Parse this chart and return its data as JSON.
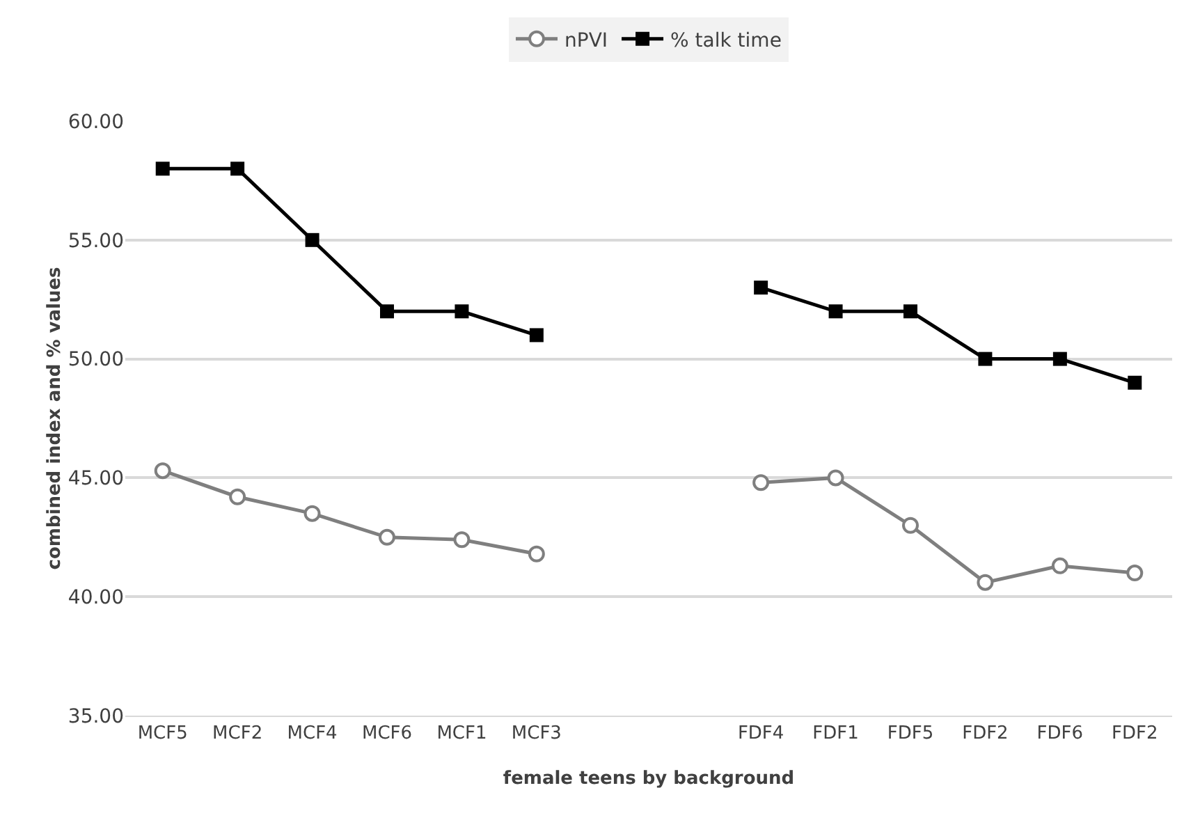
{
  "chart_data": {
    "type": "line",
    "xlabel": "female teens by background",
    "ylabel": "combined index and % values",
    "categories": [
      "MCF5",
      "MCF2",
      "MCF4",
      "MCF6",
      "MCF1",
      "MCF3",
      null,
      null,
      "FDF4",
      "FDF1",
      "FDF5",
      "FDF2",
      "FDF6",
      "FDF2"
    ],
    "series": [
      {
        "name": "nPVI",
        "color": "#7f7f7f",
        "marker": "circle",
        "values": [
          45.3,
          44.2,
          43.5,
          42.5,
          42.4,
          41.8,
          null,
          null,
          44.8,
          45.0,
          43.0,
          40.6,
          41.3,
          41.0
        ]
      },
      {
        "name": "% talk time",
        "color": "#000000",
        "marker": "square",
        "values": [
          58,
          58,
          55,
          52,
          52,
          51,
          null,
          null,
          53,
          52,
          52,
          50,
          50,
          49
        ]
      }
    ],
    "ylim": [
      35,
      60
    ],
    "yticks": [
      {
        "value": 35,
        "label": "35.00"
      },
      {
        "value": 40,
        "label": "40.00"
      },
      {
        "value": 45,
        "label": "45.00"
      },
      {
        "value": 50,
        "label": "50.00"
      },
      {
        "value": 55,
        "label": "55.00"
      },
      {
        "value": 60,
        "label": "60.00"
      }
    ],
    "grid": "y",
    "legend": "top",
    "line_style": "solid"
  }
}
